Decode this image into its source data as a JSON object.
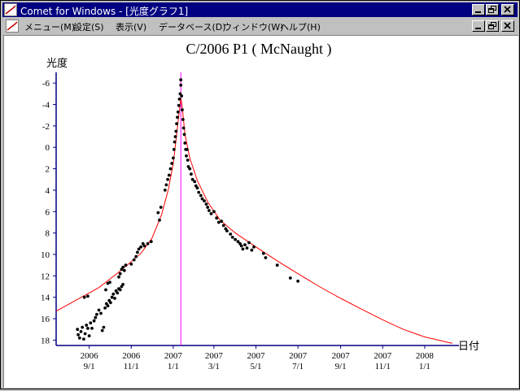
{
  "window": {
    "title": "Comet for Windows - [光度グラフ1]",
    "controls": {
      "minimize": "_",
      "restore": "❐",
      "close": "×"
    }
  },
  "menu": {
    "items": [
      {
        "label": "メニュー(M)"
      },
      {
        "label": "設定(S)"
      },
      {
        "label": "表示(V)"
      },
      {
        "label": "データベース(D)"
      },
      {
        "label": "ウィンドウ(W)"
      },
      {
        "label": "ヘルプ(H)"
      }
    ]
  },
  "colors": {
    "titlebar": "#000080",
    "axis": "#000080",
    "curve": "#ff0000",
    "perihelion_line": "#ff00ff",
    "points": "#000000"
  },
  "chart_data": {
    "type": "scatter",
    "title": "C/2006 P1 ( McNaught )",
    "ylabel": "光度",
    "xlabel": "日付",
    "y_inverted": true,
    "ylim": [
      18.5,
      -7
    ],
    "yticks": [
      -6,
      -4,
      -2,
      0,
      2,
      4,
      6,
      8,
      10,
      12,
      14,
      16,
      18
    ],
    "xlim": [
      "2006-07-15",
      "2008-02-15"
    ],
    "xticks": [
      {
        "date": "2006-09-01",
        "year": "2006",
        "md": "9/1"
      },
      {
        "date": "2006-11-01",
        "year": "2006",
        "md": "11/1"
      },
      {
        "date": "2007-01-01",
        "year": "2007",
        "md": "1/1"
      },
      {
        "date": "2007-03-01",
        "year": "2007",
        "md": "3/1"
      },
      {
        "date": "2007-05-01",
        "year": "2007",
        "md": "5/1"
      },
      {
        "date": "2007-07-01",
        "year": "2007",
        "md": "7/1"
      },
      {
        "date": "2007-09-01",
        "year": "2007",
        "md": "9/1"
      },
      {
        "date": "2007-11-01",
        "year": "2007",
        "md": "11/1"
      },
      {
        "date": "2008-01-01",
        "year": "2008",
        "md": "1/1"
      }
    ],
    "perihelion": "2007-01-12",
    "curve": [
      [
        "2006-07-15",
        15.3
      ],
      [
        "2006-08-15",
        14.2
      ],
      [
        "2006-09-15",
        13.1
      ],
      [
        "2006-10-15",
        11.6
      ],
      [
        "2006-11-15",
        9.9
      ],
      [
        "2006-12-01",
        8.5
      ],
      [
        "2006-12-15",
        6.3
      ],
      [
        "2006-12-25",
        3.9
      ],
      [
        "2007-01-01",
        1.5
      ],
      [
        "2007-01-06",
        -1.2
      ],
      [
        "2007-01-10",
        -3.5
      ],
      [
        "2007-01-12",
        -4.6
      ],
      [
        "2007-01-14",
        -3.8
      ],
      [
        "2007-01-18",
        -1.2
      ],
      [
        "2007-01-25",
        1.0
      ],
      [
        "2007-02-05",
        3.1
      ],
      [
        "2007-02-20",
        5.1
      ],
      [
        "2007-03-10",
        6.8
      ],
      [
        "2007-04-01",
        8.0
      ],
      [
        "2007-05-01",
        9.3
      ],
      [
        "2007-06-01",
        10.6
      ],
      [
        "2007-07-01",
        11.8
      ],
      [
        "2007-08-01",
        13.0
      ],
      [
        "2007-09-01",
        14.1
      ],
      [
        "2007-10-01",
        15.1
      ],
      [
        "2007-11-01",
        16.1
      ],
      [
        "2007-12-01",
        17.0
      ],
      [
        "2008-01-01",
        17.7
      ],
      [
        "2008-02-10",
        18.3
      ]
    ],
    "observations": [
      [
        "2006-08-15",
        17.0
      ],
      [
        "2006-08-16",
        17.5
      ],
      [
        "2006-08-18",
        17.8
      ],
      [
        "2006-08-20",
        17.2
      ],
      [
        "2006-08-22",
        16.8
      ],
      [
        "2006-08-24",
        17.9
      ],
      [
        "2006-08-26",
        17.4
      ],
      [
        "2006-08-28",
        16.6
      ],
      [
        "2006-08-30",
        16.9
      ],
      [
        "2006-09-01",
        17.6
      ],
      [
        "2006-09-03",
        16.4
      ],
      [
        "2006-09-05",
        16.9
      ],
      [
        "2006-09-08",
        16.2
      ],
      [
        "2006-09-10",
        15.9
      ],
      [
        "2006-09-12",
        15.6
      ],
      [
        "2006-09-15",
        15.2
      ],
      [
        "2006-09-18",
        15.5
      ],
      [
        "2006-09-20",
        17.1
      ],
      [
        "2006-09-22",
        16.8
      ],
      [
        "2006-09-24",
        15.0
      ],
      [
        "2006-09-26",
        14.6
      ],
      [
        "2006-09-28",
        14.8
      ],
      [
        "2006-09-30",
        14.3
      ],
      [
        "2006-10-02",
        14.5
      ],
      [
        "2006-10-04",
        14.0
      ],
      [
        "2006-10-06",
        13.7
      ],
      [
        "2006-10-08",
        14.1
      ],
      [
        "2006-10-10",
        13.4
      ],
      [
        "2006-10-12",
        13.6
      ],
      [
        "2006-10-14",
        12.1
      ],
      [
        "2006-10-16",
        11.8
      ],
      [
        "2006-10-18",
        11.4
      ],
      [
        "2006-10-20",
        11.2
      ],
      [
        "2006-10-22",
        11.5
      ],
      [
        "2006-10-24",
        11.0
      ],
      [
        "2006-10-14",
        13.2
      ],
      [
        "2006-10-16",
        13.3
      ],
      [
        "2006-10-18",
        13.0
      ],
      [
        "2006-10-20",
        12.8
      ],
      [
        "2006-08-25",
        14.0
      ],
      [
        "2006-08-30",
        13.9
      ],
      [
        "2006-09-25",
        13.3
      ],
      [
        "2006-09-28",
        12.7
      ],
      [
        "2006-10-01",
        12.6
      ],
      [
        "2006-11-01",
        10.9
      ],
      [
        "2006-11-05",
        10.5
      ],
      [
        "2006-11-08",
        10.2
      ],
      [
        "2006-11-10",
        9.8
      ],
      [
        "2006-11-12",
        9.5
      ],
      [
        "2006-11-15",
        9.3
      ],
      [
        "2006-11-18",
        9.0
      ],
      [
        "2006-11-20",
        9.2
      ],
      [
        "2006-11-25",
        9.0
      ],
      [
        "2006-11-30",
        8.8
      ],
      [
        "2006-12-10",
        6.1
      ],
      [
        "2006-12-12",
        6.8
      ],
      [
        "2006-12-14",
        5.6
      ],
      [
        "2006-12-20",
        4.0
      ],
      [
        "2006-12-22",
        3.5
      ],
      [
        "2006-12-24",
        3.0
      ],
      [
        "2006-12-26",
        2.6
      ],
      [
        "2006-12-28",
        2.0
      ],
      [
        "2006-12-30",
        1.5
      ],
      [
        "2007-01-01",
        1.0
      ],
      [
        "2007-01-02",
        0.2
      ],
      [
        "2007-01-03",
        -0.5
      ],
      [
        "2007-01-04",
        -1.0
      ],
      [
        "2007-01-05",
        -1.5
      ],
      [
        "2007-01-06",
        -2.2
      ],
      [
        "2007-01-07",
        -2.8
      ],
      [
        "2007-01-08",
        -3.3
      ],
      [
        "2007-01-09",
        -3.9
      ],
      [
        "2007-01-10",
        -4.5
      ],
      [
        "2007-01-11",
        -5.0
      ],
      [
        "2007-01-12",
        -5.8
      ],
      [
        "2007-01-12",
        -6.3
      ],
      [
        "2007-01-13",
        -4.8
      ],
      [
        "2007-01-14",
        -3.5
      ],
      [
        "2007-01-15",
        -2.6
      ],
      [
        "2007-01-16",
        -1.8
      ],
      [
        "2007-01-17",
        -1.2
      ],
      [
        "2007-01-18",
        -0.4
      ],
      [
        "2007-01-19",
        0.2
      ],
      [
        "2007-01-20",
        0.8
      ],
      [
        "2007-01-21",
        0.2
      ],
      [
        "2007-01-22",
        1.2
      ],
      [
        "2007-01-23",
        1.8
      ],
      [
        "2007-01-25",
        2.0
      ],
      [
        "2007-01-27",
        2.5
      ],
      [
        "2007-01-29",
        3.0
      ],
      [
        "2007-02-01",
        3.2
      ],
      [
        "2007-02-03",
        3.6
      ],
      [
        "2007-02-05",
        3.8
      ],
      [
        "2007-02-07",
        4.2
      ],
      [
        "2007-02-10",
        4.5
      ],
      [
        "2007-02-12",
        4.8
      ],
      [
        "2007-02-15",
        5.0
      ],
      [
        "2007-02-18",
        5.3
      ],
      [
        "2007-02-20",
        5.6
      ],
      [
        "2007-02-22",
        5.9
      ],
      [
        "2007-02-25",
        6.2
      ],
      [
        "2007-03-01",
        6.0
      ],
      [
        "2007-03-05",
        6.6
      ],
      [
        "2007-03-08",
        7.0
      ],
      [
        "2007-03-12",
        6.9
      ],
      [
        "2007-03-15",
        7.3
      ],
      [
        "2007-03-18",
        7.6
      ],
      [
        "2007-03-20",
        7.8
      ],
      [
        "2007-03-25",
        8.1
      ],
      [
        "2007-03-28",
        8.4
      ],
      [
        "2007-04-01",
        8.6
      ],
      [
        "2007-04-05",
        8.8
      ],
      [
        "2007-04-08",
        9.0
      ],
      [
        "2007-04-10",
        9.2
      ],
      [
        "2007-04-12",
        9.5
      ],
      [
        "2007-04-15",
        9.1
      ],
      [
        "2007-04-18",
        9.4
      ],
      [
        "2007-04-21",
        8.9
      ],
      [
        "2007-04-25",
        9.6
      ],
      [
        "2007-04-28",
        9.3
      ],
      [
        "2007-05-12",
        9.9
      ],
      [
        "2007-05-15",
        10.3
      ],
      [
        "2007-06-01",
        11.0
      ],
      [
        "2007-06-20",
        12.2
      ],
      [
        "2007-07-01",
        12.5
      ]
    ]
  }
}
